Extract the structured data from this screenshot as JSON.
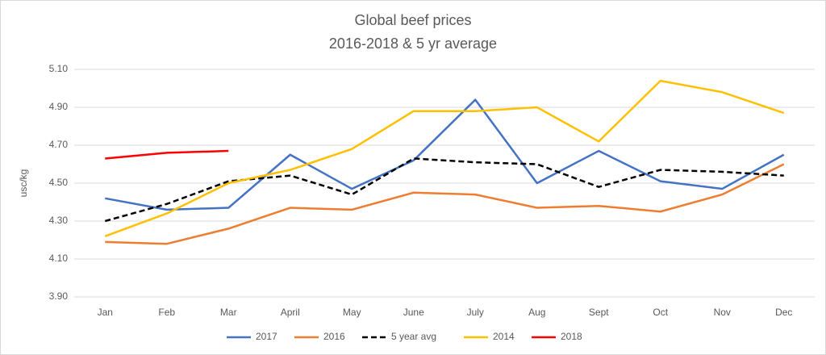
{
  "chart_data": {
    "type": "line",
    "title": "Global beef prices",
    "subtitle": "2016-2018 & 5 yr average",
    "y_label": "usc/kg",
    "categories": [
      "Jan",
      "Feb",
      "Mar",
      "April",
      "May",
      "June",
      "July",
      "Aug",
      "Sept",
      "Oct",
      "Nov",
      "Dec"
    ],
    "series": [
      {
        "name": "2017",
        "color": "#4472c4",
        "values": [
          4.42,
          4.36,
          4.37,
          4.65,
          4.47,
          4.62,
          4.94,
          4.5,
          4.67,
          4.51,
          4.47,
          4.65
        ]
      },
      {
        "name": "2016",
        "color": "#ed7d31",
        "values": [
          4.19,
          4.18,
          4.26,
          4.37,
          4.36,
          4.45,
          4.44,
          4.37,
          4.38,
          4.35,
          4.44,
          4.6
        ]
      },
      {
        "name": "5 year avg",
        "color": "#000000",
        "dashed": true,
        "values": [
          4.3,
          4.39,
          4.51,
          4.54,
          4.44,
          4.63,
          4.61,
          4.6,
          4.48,
          4.57,
          4.56,
          4.54
        ]
      },
      {
        "name": "2014",
        "color": "#ffc000",
        "values": [
          4.22,
          4.34,
          4.5,
          4.57,
          4.68,
          4.88,
          4.88,
          4.9,
          4.72,
          5.04,
          4.98,
          4.87
        ]
      },
      {
        "name": "2018",
        "color": "#ff0000",
        "values": [
          4.63,
          4.66,
          4.67,
          null,
          null,
          null,
          null,
          null,
          null,
          null,
          null,
          null
        ]
      }
    ],
    "ylim": [
      3.9,
      5.1
    ],
    "yticks": [
      {
        "value": 3.9,
        "label": "3.90"
      },
      {
        "value": 4.1,
        "label": "4.10"
      },
      {
        "value": 4.3,
        "label": "4.30"
      },
      {
        "value": 4.5,
        "label": "4.50"
      },
      {
        "value": 4.7,
        "label": "4.70"
      },
      {
        "value": 4.9,
        "label": "4.90"
      },
      {
        "value": 5.1,
        "label": "5.10"
      }
    ],
    "grid": true,
    "legend": "bottom"
  }
}
